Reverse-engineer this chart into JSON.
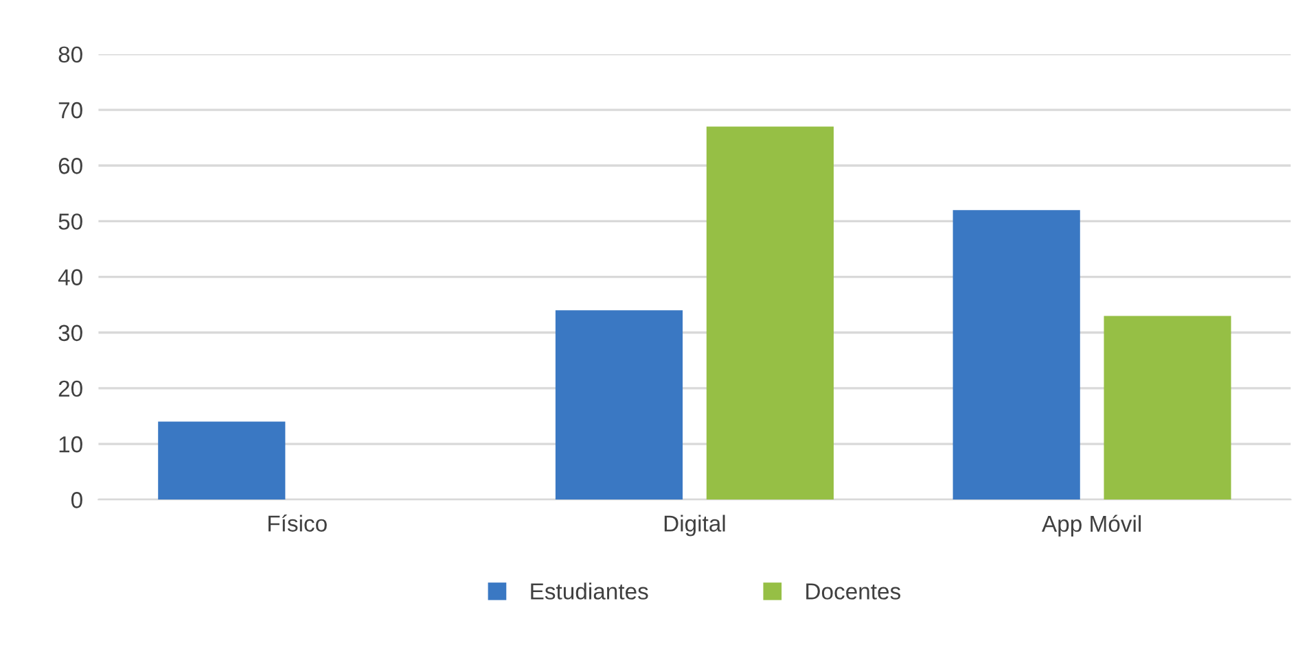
{
  "chart_data": {
    "type": "bar",
    "categories": [
      "Físico",
      "Digital",
      "App Móvil"
    ],
    "series": [
      {
        "name": "Estudiantes",
        "color": "#3a78c3",
        "values": [
          14,
          34,
          52
        ]
      },
      {
        "name": "Docentes",
        "color": "#96bf45",
        "values": [
          null,
          67,
          33
        ]
      }
    ],
    "ylim": [
      0,
      80
    ],
    "yticks": [
      0,
      10,
      20,
      30,
      40,
      50,
      60,
      70,
      80
    ],
    "grid": "y",
    "legend": "bottom"
  }
}
